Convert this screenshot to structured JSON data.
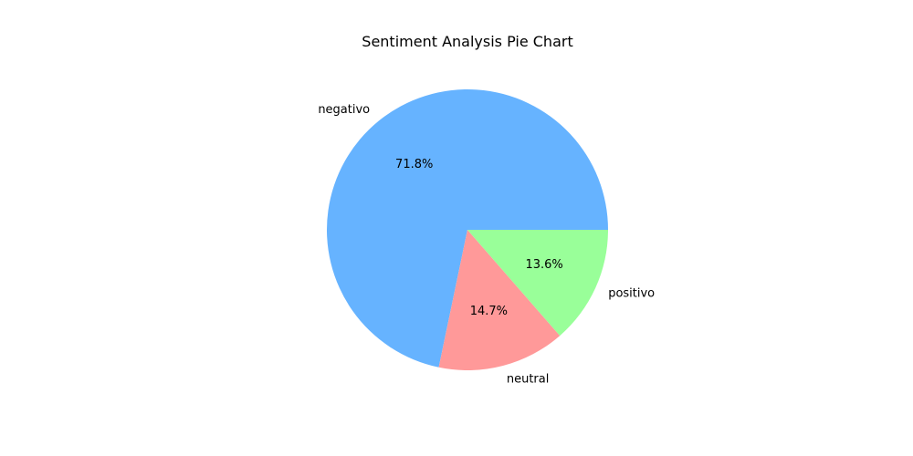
{
  "chart_data": {
    "type": "pie",
    "title": "Sentiment Analysis Pie Chart",
    "start_angle": 0,
    "direction": "counterclockwise",
    "legend": "none",
    "slices": [
      {
        "label": "negativo",
        "value": 71.8,
        "pct_label": "71.8%",
        "color": "#66b3ff"
      },
      {
        "label": "neutral",
        "value": 14.7,
        "pct_label": "14.7%",
        "color": "#ff9999"
      },
      {
        "label": "positivo",
        "value": 13.6,
        "pct_label": "13.6%",
        "color": "#99ff99"
      }
    ]
  }
}
